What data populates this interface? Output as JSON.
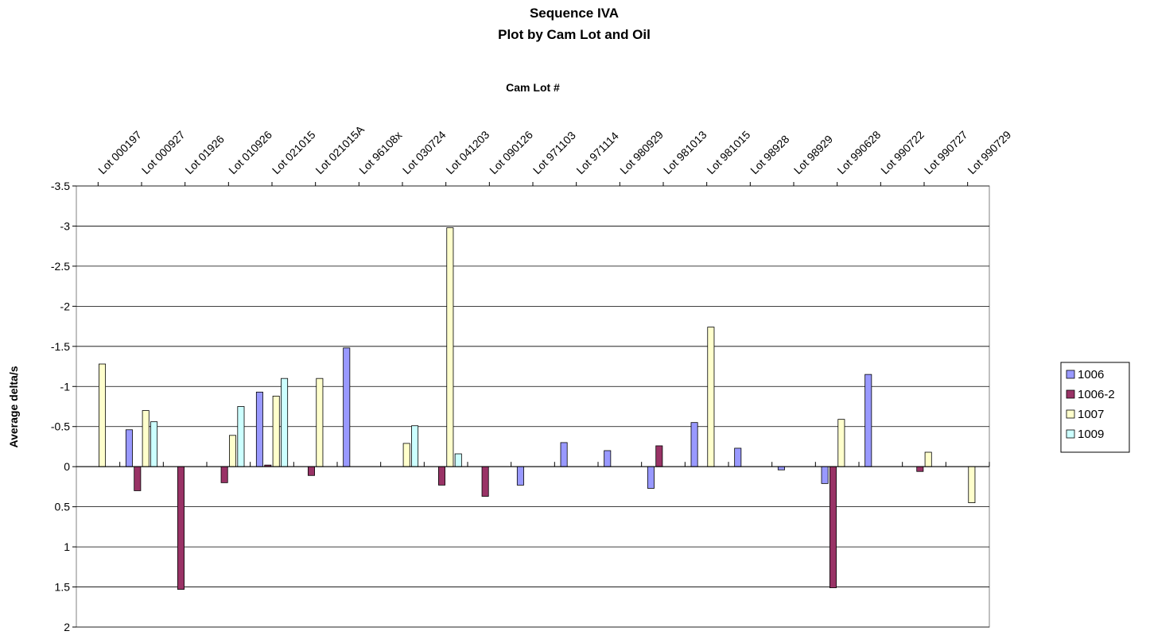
{
  "chart_data": {
    "type": "bar",
    "title": "Sequence IVA",
    "subtitle": "Plot by Cam Lot and Oil",
    "xlabel": "Cam Lot #",
    "ylabel": "Average delta/s",
    "y_reversed": true,
    "ylim": [
      -3.5,
      2
    ],
    "ytick_step": 0.5,
    "x_axis_position": "top",
    "grid": true,
    "legend_position": "right",
    "categories": [
      "Lot 000197",
      "Lot 000927",
      "Lot 01926",
      "Lot 010926",
      "Lot 021015",
      "Lot 021015A",
      "Lot 96108x",
      "Lot 030724",
      "Lot 041203",
      "Lot 090126",
      "Lot 971103",
      "Lot 971114",
      "Lot 980929",
      "Lot 981013",
      "Lot 981015",
      "Lot 98928",
      "Lot 98929",
      "Lot 990628",
      "Lot 990722",
      "Lot 990727",
      "Lot 990729"
    ],
    "series": [
      {
        "name": "1006",
        "color": "#9999ff",
        "values": [
          null,
          -0.46,
          null,
          null,
          -0.93,
          null,
          -1.48,
          null,
          null,
          null,
          0.23,
          -0.3,
          -0.2,
          0.27,
          -0.55,
          -0.23,
          0.04,
          0.21,
          -1.15,
          null,
          null
        ]
      },
      {
        "name": "1006-2",
        "color": "#993366",
        "values": [
          null,
          0.3,
          1.53,
          0.2,
          -0.02,
          0.11,
          null,
          null,
          0.23,
          0.37,
          null,
          null,
          null,
          -0.26,
          null,
          null,
          null,
          1.51,
          null,
          0.06,
          null
        ]
      },
      {
        "name": "1007",
        "color": "#ffffcc",
        "values": [
          -1.28,
          -0.7,
          null,
          -0.39,
          -0.88,
          -1.1,
          null,
          -0.29,
          -2.98,
          null,
          null,
          null,
          null,
          null,
          -1.74,
          null,
          null,
          -0.59,
          null,
          -0.18,
          0.45
        ]
      },
      {
        "name": "1009",
        "color": "#ccffff",
        "values": [
          null,
          -0.56,
          null,
          -0.75,
          -1.1,
          null,
          null,
          -0.51,
          -0.16,
          null,
          null,
          null,
          null,
          null,
          null,
          null,
          null,
          null,
          null,
          null,
          null
        ]
      }
    ]
  }
}
